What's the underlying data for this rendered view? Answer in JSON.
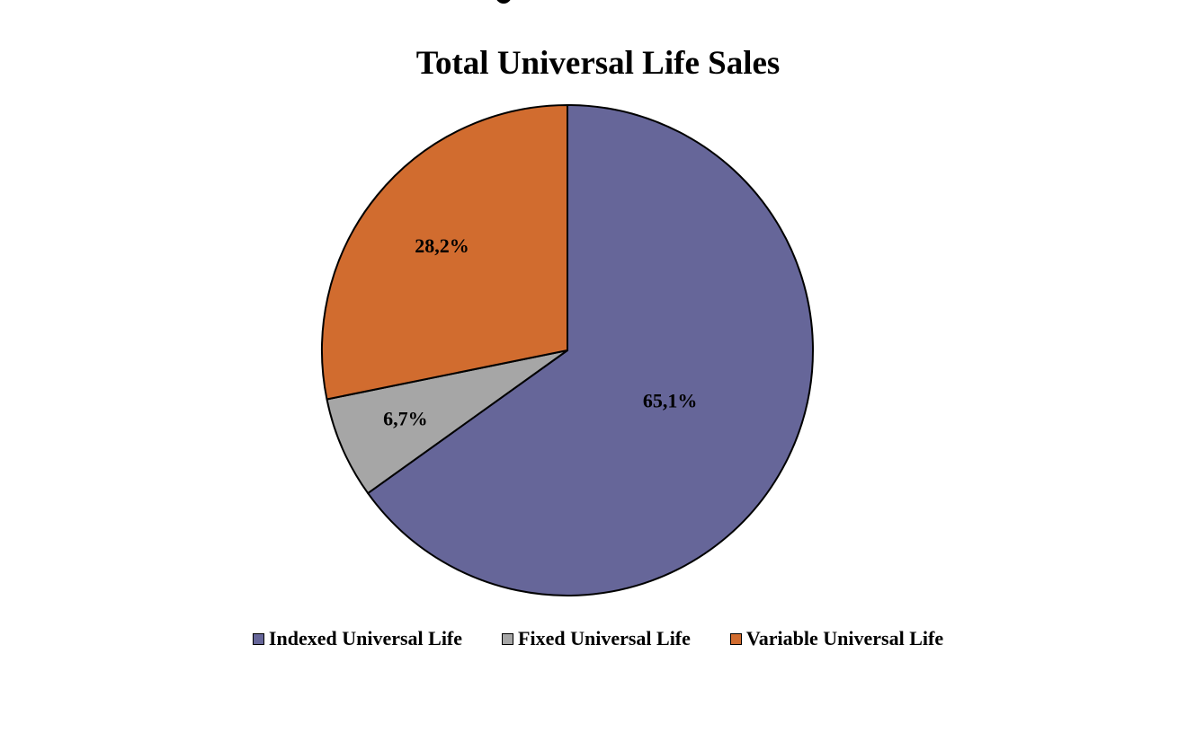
{
  "chart_data": {
    "type": "pie",
    "title": "Total Universal Life Sales",
    "slices": [
      {
        "name": "Indexed Universal Life",
        "value": 65.1,
        "label": "65,1%",
        "color": "#666699"
      },
      {
        "name": "Fixed Universal Life",
        "value": 6.7,
        "label": "6,7%",
        "color": "#a6a6a6"
      },
      {
        "name": "Variable Universal Life",
        "value": 28.2,
        "label": "28,2%",
        "color": "#d16c2f"
      }
    ],
    "legend_position": "bottom",
    "start_angle": "12 o'clock",
    "direction": "clockwise"
  }
}
